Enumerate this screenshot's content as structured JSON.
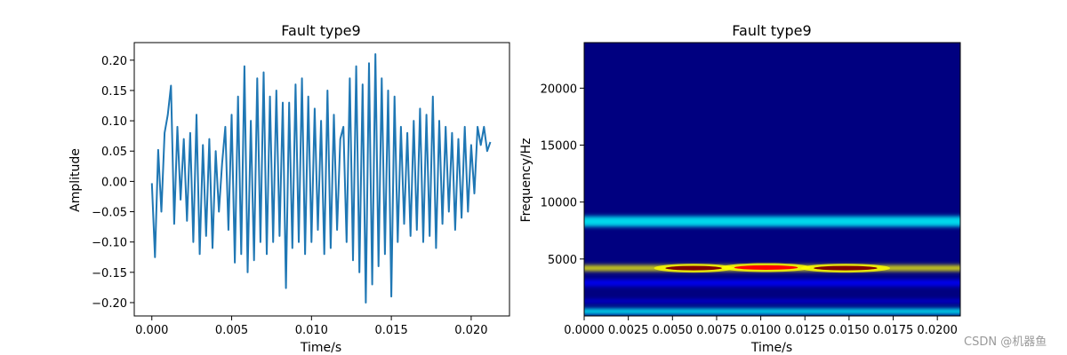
{
  "chart_data": [
    {
      "type": "line",
      "title": "Fault type9",
      "xlabel": "Time/s",
      "ylabel": "Amplitude",
      "xlim": [
        -0.0011,
        0.0224
      ],
      "ylim": [
        -0.222,
        0.229
      ],
      "xticks": [
        "0.000",
        "0.005",
        "0.010",
        "0.015",
        "0.020"
      ],
      "xtick_values": [
        0.0,
        0.005,
        0.01,
        0.015,
        0.02
      ],
      "yticks": [
        "0.20",
        "0.15",
        "0.10",
        "0.05",
        "0.00",
        "−0.05",
        "−0.10",
        "−0.15",
        "−0.20"
      ],
      "ytick_values": [
        0.2,
        0.15,
        0.1,
        0.05,
        0.0,
        -0.05,
        -0.1,
        -0.15,
        -0.2
      ],
      "line_color": "#1f77b4",
      "series": [
        {
          "x_start": 0.0,
          "x_end": 0.0213,
          "sample_count": 420,
          "x": [
            0.0,
            0.0002,
            0.0004,
            0.0006,
            0.0008,
            0.001,
            0.0012,
            0.0014,
            0.0016,
            0.0018,
            0.002,
            0.0022,
            0.0024,
            0.0026,
            0.0028,
            0.003,
            0.0032,
            0.0034,
            0.0036,
            0.0038,
            0.004,
            0.0042,
            0.0044,
            0.0046,
            0.0048,
            0.005,
            0.0052,
            0.0054,
            0.0056,
            0.0058,
            0.006,
            0.0062,
            0.0064,
            0.0066,
            0.0068,
            0.007,
            0.0072,
            0.0074,
            0.0076,
            0.0078,
            0.008,
            0.0082,
            0.0084,
            0.0086,
            0.0088,
            0.009,
            0.0092,
            0.0094,
            0.0096,
            0.0098,
            0.01,
            0.0102,
            0.0104,
            0.0106,
            0.0108,
            0.011,
            0.0112,
            0.0114,
            0.0116,
            0.0118,
            0.012,
            0.0122,
            0.0124,
            0.0126,
            0.0128,
            0.013,
            0.0132,
            0.0134,
            0.0136,
            0.0138,
            0.014,
            0.0142,
            0.0144,
            0.0146,
            0.0148,
            0.015,
            0.0152,
            0.0154,
            0.0156,
            0.0158,
            0.016,
            0.0162,
            0.0164,
            0.0166,
            0.0168,
            0.017,
            0.0172,
            0.0174,
            0.0176,
            0.0178,
            0.018,
            0.0182,
            0.0184,
            0.0186,
            0.0188,
            0.019,
            0.0192,
            0.0194,
            0.0196,
            0.0198,
            0.02,
            0.0202,
            0.0204,
            0.0206,
            0.0208,
            0.021,
            0.0212
          ],
          "values": [
            -0.003,
            -0.125,
            0.052,
            -0.05,
            0.08,
            0.11,
            0.158,
            -0.07,
            0.09,
            -0.03,
            0.07,
            -0.065,
            0.08,
            -0.1,
            0.11,
            -0.12,
            0.06,
            -0.09,
            0.07,
            -0.11,
            0.05,
            -0.05,
            0.03,
            0.09,
            -0.08,
            0.11,
            -0.134,
            0.14,
            -0.12,
            0.19,
            -0.15,
            0.1,
            -0.13,
            0.17,
            -0.1,
            0.18,
            -0.12,
            0.14,
            -0.1,
            0.15,
            -0.09,
            0.13,
            -0.176,
            0.13,
            -0.11,
            0.16,
            -0.1,
            0.17,
            -0.12,
            0.14,
            -0.1,
            0.12,
            -0.08,
            0.1,
            -0.12,
            0.15,
            -0.11,
            0.11,
            -0.08,
            0.07,
            0.09,
            -0.1,
            0.17,
            -0.13,
            0.19,
            -0.15,
            0.16,
            -0.2,
            0.195,
            -0.17,
            0.21,
            -0.14,
            0.17,
            -0.12,
            0.15,
            -0.19,
            0.14,
            -0.1,
            0.09,
            -0.07,
            0.08,
            -0.09,
            0.1,
            -0.08,
            0.12,
            -0.1,
            0.11,
            -0.09,
            0.14,
            -0.11,
            0.1,
            -0.07,
            0.09,
            -0.05,
            0.08,
            -0.08,
            0.07,
            -0.06,
            0.09,
            -0.05,
            0.06,
            -0.02,
            0.09,
            0.06,
            0.09,
            0.05,
            0.065
          ]
        }
      ]
    },
    {
      "type": "heatmap",
      "title": "Fault type9",
      "xlabel": "Time/s",
      "ylabel": "Frequency/Hz",
      "xlim": [
        0.0,
        0.0213
      ],
      "ylim": [
        0,
        24000
      ],
      "xticks": [
        "0.0000",
        "0.0025",
        "0.0050",
        "0.0075",
        "0.0100",
        "0.0125",
        "0.0150",
        "0.0175",
        "0.0200"
      ],
      "xtick_values": [
        0.0,
        0.0025,
        0.005,
        0.0075,
        0.01,
        0.0125,
        0.015,
        0.0175,
        0.02
      ],
      "yticks": [
        "20000",
        "15000",
        "10000",
        "5000"
      ],
      "ytick_values": [
        20000,
        15000,
        10000,
        5000
      ],
      "colormap": [
        "#000080",
        "#0000ff",
        "#00ffff",
        "#ffff00",
        "#ff0000",
        "#800000"
      ],
      "bands": [
        {
          "freq": 4200,
          "intensity": 0.55,
          "width": 250
        },
        {
          "freq": 8300,
          "intensity": 0.3,
          "width": 450
        },
        {
          "freq": 2900,
          "intensity": 0.25,
          "width": 300
        },
        {
          "freq": 1300,
          "intensity": 0.22,
          "width": 120
        },
        {
          "freq": 400,
          "intensity": 0.35,
          "width": 250
        }
      ],
      "hotspots": [
        {
          "t": 0.0062,
          "freq": 4200,
          "intensity": 1.0,
          "time_width": 0.0016
        },
        {
          "t": 0.0103,
          "freq": 4250,
          "intensity": 0.8,
          "time_width": 0.0018
        },
        {
          "t": 0.0148,
          "freq": 4200,
          "intensity": 0.95,
          "time_width": 0.0018
        }
      ]
    }
  ],
  "watermark": "CSDN @机器鱼"
}
